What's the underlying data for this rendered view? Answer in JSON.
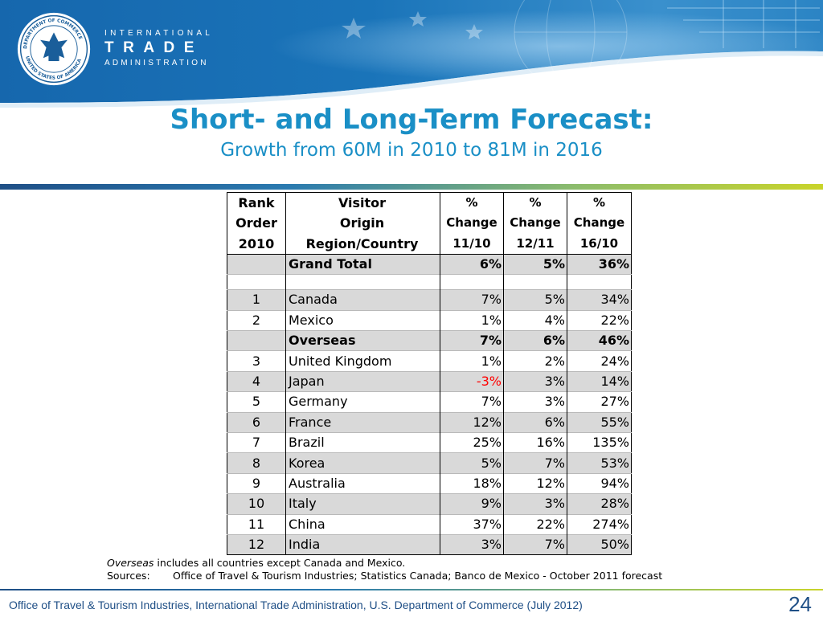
{
  "brand": {
    "seal_text": "DEPARTMENT OF COMMERCE · UNITED STATES OF AMERICA",
    "line1": "INTERNATIONAL",
    "line2": "TRADE",
    "line3": "ADMINISTRATION",
    "colors": {
      "header_blue": "#1b74b8",
      "title_blue": "#1a8fc6",
      "footer_blue": "#1f4f86",
      "shade": "#d9d9d9",
      "negative": "#ff0000"
    }
  },
  "slide": {
    "title": "Short- and Long-Term Forecast:",
    "subtitle": "Growth from 60M in 2010 to 81M in 2016"
  },
  "table": {
    "headers": {
      "rank": [
        "Rank",
        "Order",
        "2010"
      ],
      "origin": [
        "Visitor",
        "Origin",
        "Region/Country"
      ],
      "chg1": [
        "%",
        "Change",
        "11/10"
      ],
      "chg2": [
        "%",
        "Change",
        "12/11"
      ],
      "chg3": [
        "%",
        "Change",
        "16/10"
      ]
    },
    "rows": [
      {
        "rank": "",
        "name": "Grand Total",
        "c1": "6%",
        "c2": "5%",
        "c3": "36%"
      },
      {
        "rank": "",
        "name": "",
        "c1": "",
        "c2": "",
        "c3": ""
      },
      {
        "rank": "1",
        "name": "Canada",
        "c1": "7%",
        "c2": "5%",
        "c3": "34%"
      },
      {
        "rank": "2",
        "name": "Mexico",
        "c1": "1%",
        "c2": "4%",
        "c3": "22%"
      },
      {
        "rank": "",
        "name": "Overseas",
        "c1": "7%",
        "c2": "6%",
        "c3": "46%"
      },
      {
        "rank": "3",
        "name": "United Kingdom",
        "c1": "1%",
        "c2": "2%",
        "c3": "24%"
      },
      {
        "rank": "4",
        "name": "Japan",
        "c1": "-3%",
        "c2": "3%",
        "c3": "14%"
      },
      {
        "rank": "5",
        "name": "Germany",
        "c1": "7%",
        "c2": "3%",
        "c3": "27%"
      },
      {
        "rank": "6",
        "name": "France",
        "c1": "12%",
        "c2": "6%",
        "c3": "55%"
      },
      {
        "rank": "7",
        "name": "Brazil",
        "c1": "25%",
        "c2": "16%",
        "c3": "135%"
      },
      {
        "rank": "8",
        "name": "Korea",
        "c1": "5%",
        "c2": "7%",
        "c3": "53%"
      },
      {
        "rank": "9",
        "name": "Australia",
        "c1": "18%",
        "c2": "12%",
        "c3": "94%"
      },
      {
        "rank": "10",
        "name": "Italy",
        "c1": "9%",
        "c2": "3%",
        "c3": "28%"
      },
      {
        "rank": "11",
        "name": "China",
        "c1": "37%",
        "c2": "22%",
        "c3": "274%"
      },
      {
        "rank": "12",
        "name": "India",
        "c1": "3%",
        "c2": "7%",
        "c3": "50%"
      }
    ]
  },
  "notes": {
    "overseas_term": "Overseas",
    "overseas_rest": " includes all countries except Canada and Mexico.",
    "sources_label": "Sources:",
    "sources_text": "Office of Travel & Tourism Industries; Statistics Canada; Banco de Mexico -  October 2011 forecast"
  },
  "footer": {
    "text": "Office of Travel & Tourism Industries, International Trade Administration, U.S. Department of Commerce (July 2012)",
    "page_number": "24"
  }
}
